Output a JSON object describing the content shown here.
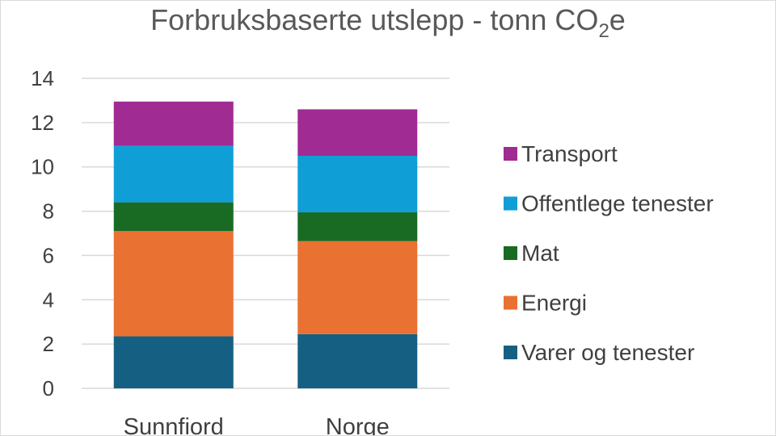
{
  "chart_data": {
    "type": "bar",
    "stacked": true,
    "title": "Forbruksbaserte utslepp - tonn CO",
    "title_subscript": "2",
    "title_suffix": "e",
    "categories": [
      "Sunnfiord",
      "Norge"
    ],
    "series": [
      {
        "name": "Varer og tenester",
        "values": [
          2.35,
          2.45
        ],
        "color": "#156082"
      },
      {
        "name": "Energi",
        "values": [
          4.75,
          4.2
        ],
        "color": "#E97132"
      },
      {
        "name": "Mat",
        "values": [
          1.3,
          1.3
        ],
        "color": "#196B24"
      },
      {
        "name": "Offentlege tenester",
        "values": [
          2.55,
          2.55
        ],
        "color": "#0F9ED5"
      },
      {
        "name": "Transport",
        "values": [
          2.0,
          2.1
        ],
        "color": "#A02B93"
      }
    ],
    "ylim": [
      0,
      14
    ],
    "yticks": [
      0,
      2,
      4,
      6,
      8,
      10,
      12,
      14
    ],
    "grid": true,
    "legend_position": "right"
  }
}
